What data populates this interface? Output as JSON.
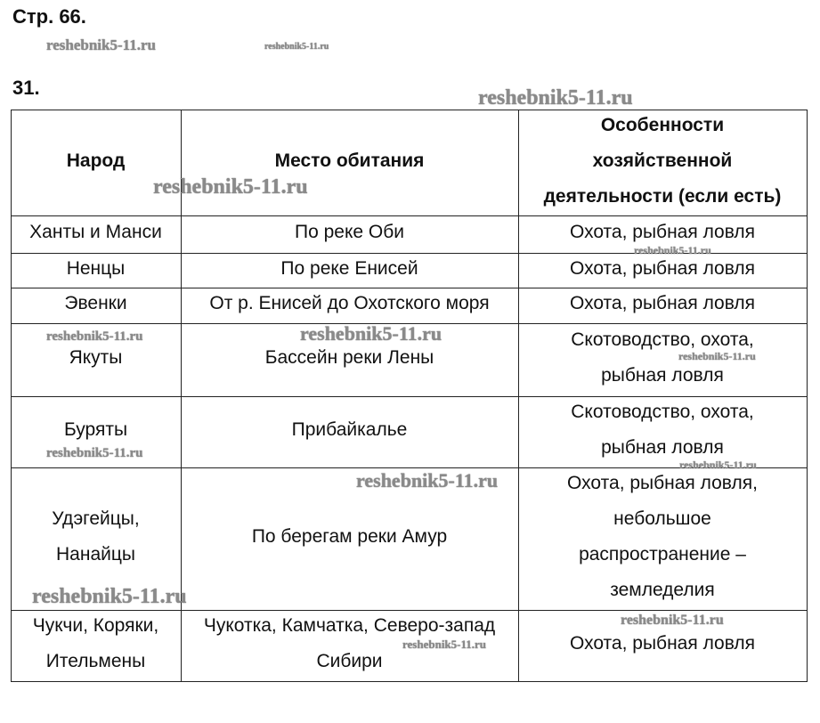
{
  "page_label": "Стр. 66.",
  "task_number": "31.",
  "watermark": "reshebnik5-11.ru",
  "table": {
    "headers": [
      [
        "Народ"
      ],
      [
        "Место обитания"
      ],
      [
        "Особенности",
        "хозяйственной",
        "деятельности (если есть)"
      ]
    ],
    "rows": [
      [
        [
          "Ханты и Манси"
        ],
        [
          "По реке Оби"
        ],
        [
          "Охота, рыбная ловля"
        ]
      ],
      [
        [
          "Ненцы"
        ],
        [
          "По реке Енисей"
        ],
        [
          "Охота, рыбная ловля"
        ]
      ],
      [
        [
          "Эвенки"
        ],
        [
          "От р. Енисей до Охотского моря"
        ],
        [
          "Охота, рыбная ловля"
        ]
      ],
      [
        [
          "Якуты"
        ],
        [
          "Бассейн реки Лены"
        ],
        [
          "Скотоводство, охота,",
          "рыбная ловля"
        ]
      ],
      [
        [
          "Буряты"
        ],
        [
          "Прибайкалье"
        ],
        [
          "Скотоводство, охота,",
          "рыбная ловля"
        ]
      ],
      [
        [
          "Удэгейцы,",
          "Нанайцы"
        ],
        [
          "По берегам реки Амур"
        ],
        [
          "Охота, рыбная ловля,",
          "небольшое",
          "распространение –",
          "земледелия"
        ]
      ],
      [
        [
          "Чукчи, Коряки,",
          "Ительмены"
        ],
        [
          "Чукотка, Камчатка, Северо-запад",
          "Сибири"
        ],
        [
          "Охота, рыбная ловля"
        ]
      ]
    ]
  }
}
